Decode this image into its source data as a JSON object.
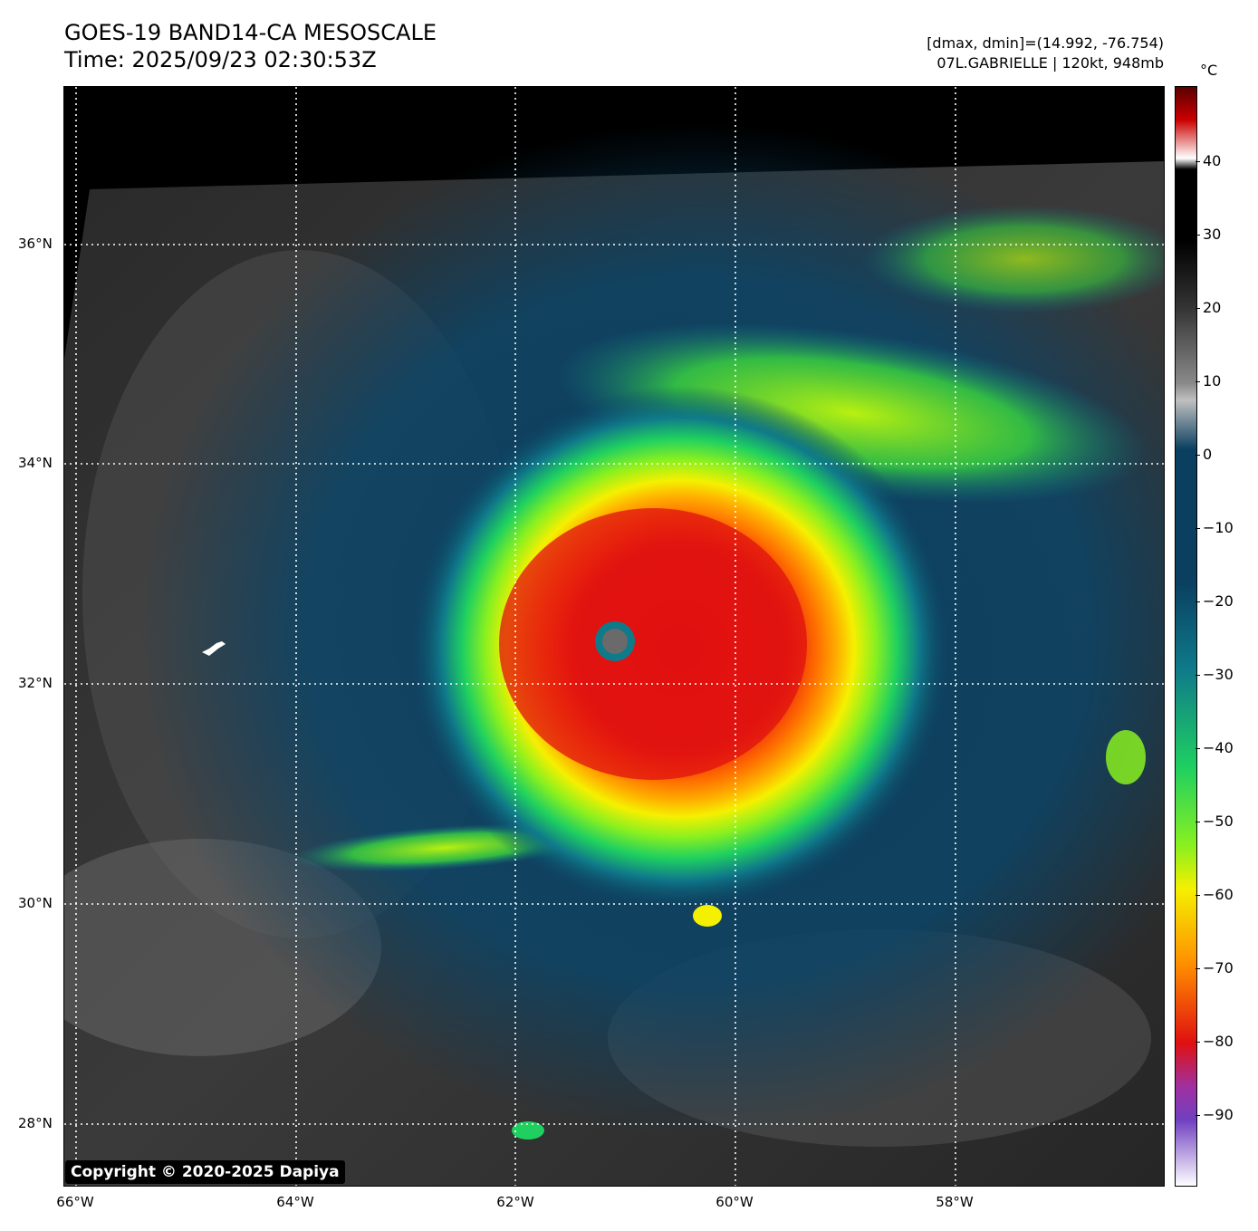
{
  "header": {
    "title_line1": "GOES-19 BAND14-CA MESOSCALE",
    "title_line2": "Time: 2025/09/23 02:30:53Z",
    "info_line1": "[dmax, dmin]=(14.992, -76.754)",
    "info_line2": "07L.GABRIELLE | 120kt, 948mb"
  },
  "map": {
    "lat_labels": [
      "36°N",
      "34°N",
      "32°N",
      "30°N",
      "28°N"
    ],
    "lon_labels": [
      "66°W",
      "64°W",
      "62°W",
      "60°W",
      "58°W"
    ],
    "gridlines": "dotted white",
    "storm": {
      "name": "07L.GABRIELLE",
      "intensity_kt": 120,
      "pressure_mb": 948
    }
  },
  "colorbar": {
    "unit": "°C",
    "labels": [
      "40",
      "30",
      "20",
      "10",
      "0",
      "−10",
      "−20",
      "−30",
      "−40",
      "−50",
      "−60",
      "−70",
      "−80",
      "−90"
    ],
    "colors": {
      "warm_max": "#5a0000",
      "black": "#000000",
      "gray": "#8a8a8a",
      "dark_blue": "#0a3f60",
      "teal": "#0f7a8a",
      "green": "#1fd060",
      "lime": "#88f020",
      "yellow": "#f5f000",
      "orange": "#ff8c00",
      "red": "#e01010",
      "purple": "#7040c0",
      "white": "#ffffff"
    }
  },
  "copyright": "Copyright © 2020-2025 Dapiya"
}
